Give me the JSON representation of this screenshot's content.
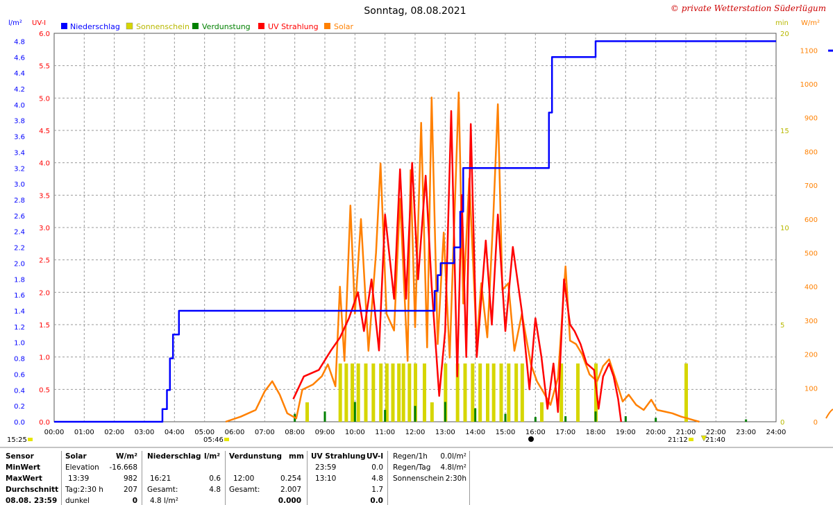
{
  "title": "Sonntag, 08.08.2021",
  "copyright": "© private Wetterstation Süderlügum",
  "axis_labels": {
    "left_outer": "l/m²",
    "left_inner": "UV-I",
    "right_inner": "min",
    "right_outer": "W/m²"
  },
  "colors": {
    "niederschlag": "#0000ff",
    "sonnenschein": "#d6d600",
    "verdunstung": "#008000",
    "uv": "#ff0000",
    "solar": "#ff8000"
  },
  "chart_data": {
    "type": "line",
    "title": "Sonntag, 08.08.2021",
    "x_ticks": [
      "00:00",
      "01:00",
      "02:00",
      "03:00",
      "04:00",
      "05:00",
      "06:00",
      "07:00",
      "08:00",
      "09:00",
      "10:00",
      "11:00",
      "12:00",
      "13:00",
      "14:00",
      "15:00",
      "16:00",
      "17:00",
      "18:00",
      "19:00",
      "20:00",
      "21:00",
      "22:00",
      "23:00",
      "24:00"
    ],
    "x_range_hours": [
      0,
      24
    ],
    "axes": {
      "rain_lm2": {
        "range": [
          0,
          4.9
        ],
        "ticks": [
          "0.0",
          "0.2",
          "0.4",
          "0.6",
          "0.8",
          "1.0",
          "1.2",
          "1.4",
          "1.6",
          "1.8",
          "2.0",
          "2.2",
          "2.4",
          "2.6",
          "2.8",
          "3.0",
          "3.2",
          "3.4",
          "3.6",
          "3.8",
          "4.0",
          "4.2",
          "4.4",
          "4.6",
          "4.8"
        ]
      },
      "uv_index": {
        "range": [
          0,
          6.0
        ],
        "ticks": [
          "0.0",
          "0.5",
          "1.0",
          "1.5",
          "2.0",
          "2.5",
          "3.0",
          "3.5",
          "4.0",
          "4.5",
          "5.0",
          "5.5",
          "6.0"
        ]
      },
      "sunshine_min": {
        "range": [
          0,
          20
        ],
        "ticks": [
          "0",
          "5",
          "10",
          "15",
          "20"
        ]
      },
      "solar_wm2": {
        "range": [
          0,
          1150
        ],
        "ticks": [
          "0",
          "100",
          "200",
          "300",
          "400",
          "500",
          "600",
          "700",
          "800",
          "900",
          "1000",
          "1100"
        ]
      }
    },
    "legend": [
      "Niederschlag",
      "Sonnenschein",
      "Verdunstung",
      "UV Strahlung",
      "Solar"
    ],
    "legend_position": "top",
    "grid": true,
    "series": [
      {
        "name": "Niederschlag",
        "axis": "rain_lm2",
        "step": true,
        "points": [
          [
            0,
            0
          ],
          [
            3.6,
            0
          ],
          [
            3.6,
            0.16
          ],
          [
            3.75,
            0.16
          ],
          [
            3.75,
            0.4
          ],
          [
            3.85,
            0.4
          ],
          [
            3.85,
            0.8
          ],
          [
            3.95,
            0.8
          ],
          [
            3.95,
            1.1
          ],
          [
            4.15,
            1.1
          ],
          [
            4.15,
            1.4
          ],
          [
            12.65,
            1.4
          ],
          [
            12.65,
            1.65
          ],
          [
            12.75,
            1.65
          ],
          [
            12.75,
            1.85
          ],
          [
            12.85,
            1.85
          ],
          [
            12.85,
            2.0
          ],
          [
            13.3,
            2.0
          ],
          [
            13.3,
            2.2
          ],
          [
            13.5,
            2.2
          ],
          [
            13.5,
            2.65
          ],
          [
            13.6,
            2.65
          ],
          [
            13.6,
            3.2
          ],
          [
            16.45,
            3.2
          ],
          [
            16.45,
            3.9
          ],
          [
            16.55,
            3.9
          ],
          [
            16.55,
            4.6
          ],
          [
            18.0,
            4.6
          ],
          [
            18.0,
            4.8
          ],
          [
            24,
            4.8
          ]
        ]
      },
      {
        "name": "UV Strahlung",
        "axis": "uv_index",
        "points": [
          [
            7.95,
            0.35
          ],
          [
            8.3,
            0.7
          ],
          [
            8.8,
            0.8
          ],
          [
            9.2,
            1.1
          ],
          [
            9.5,
            1.3
          ],
          [
            9.8,
            1.6
          ],
          [
            10.1,
            2.0
          ],
          [
            10.3,
            1.4
          ],
          [
            10.55,
            2.2
          ],
          [
            10.8,
            1.1
          ],
          [
            11.0,
            3.2
          ],
          [
            11.3,
            1.9
          ],
          [
            11.5,
            3.9
          ],
          [
            11.7,
            1.9
          ],
          [
            11.9,
            4.0
          ],
          [
            12.1,
            2.2
          ],
          [
            12.35,
            3.8
          ],
          [
            12.55,
            2.1
          ],
          [
            12.8,
            0.4
          ],
          [
            13.0,
            1.4
          ],
          [
            13.2,
            4.8
          ],
          [
            13.4,
            0.7
          ],
          [
            13.55,
            3.5
          ],
          [
            13.7,
            1.0
          ],
          [
            13.85,
            4.6
          ],
          [
            14.05,
            1.0
          ],
          [
            14.35,
            2.8
          ],
          [
            14.55,
            1.5
          ],
          [
            14.75,
            3.2
          ],
          [
            15.0,
            1.4
          ],
          [
            15.25,
            2.7
          ],
          [
            15.55,
            1.7
          ],
          [
            15.8,
            0.5
          ],
          [
            16.0,
            1.6
          ],
          [
            16.2,
            1.0
          ],
          [
            16.4,
            0.2
          ],
          [
            16.6,
            0.9
          ],
          [
            16.75,
            0.15
          ],
          [
            16.95,
            2.2
          ],
          [
            17.15,
            1.5
          ],
          [
            17.3,
            1.4
          ],
          [
            17.5,
            1.2
          ],
          [
            17.7,
            0.9
          ],
          [
            17.95,
            0.8
          ],
          [
            18.1,
            0.2
          ],
          [
            18.25,
            0.7
          ],
          [
            18.45,
            0.9
          ],
          [
            18.6,
            0.7
          ],
          [
            18.75,
            0.35
          ],
          [
            18.85,
            0.0
          ]
        ]
      },
      {
        "name": "Solar",
        "axis": "solar_wm2",
        "points": [
          [
            5.7,
            0
          ],
          [
            6.2,
            15
          ],
          [
            6.7,
            35
          ],
          [
            7.0,
            90
          ],
          [
            7.25,
            120
          ],
          [
            7.5,
            80
          ],
          [
            7.75,
            25
          ],
          [
            8.05,
            10
          ],
          [
            8.25,
            95
          ],
          [
            8.6,
            110
          ],
          [
            8.9,
            135
          ],
          [
            9.1,
            170
          ],
          [
            9.35,
            105
          ],
          [
            9.5,
            400
          ],
          [
            9.65,
            180
          ],
          [
            9.85,
            640
          ],
          [
            10.0,
            320
          ],
          [
            10.2,
            600
          ],
          [
            10.45,
            210
          ],
          [
            10.7,
            500
          ],
          [
            10.85,
            765
          ],
          [
            11.05,
            320
          ],
          [
            11.3,
            270
          ],
          [
            11.5,
            660
          ],
          [
            11.75,
            180
          ],
          [
            11.85,
            745
          ],
          [
            12.0,
            280
          ],
          [
            12.2,
            885
          ],
          [
            12.4,
            220
          ],
          [
            12.55,
            960
          ],
          [
            12.75,
            230
          ],
          [
            12.95,
            560
          ],
          [
            13.15,
            190
          ],
          [
            13.45,
            975
          ],
          [
            13.6,
            350
          ],
          [
            13.8,
            720
          ],
          [
            14.05,
            230
          ],
          [
            14.2,
            410
          ],
          [
            14.4,
            250
          ],
          [
            14.6,
            610
          ],
          [
            14.75,
            940
          ],
          [
            14.9,
            390
          ],
          [
            15.1,
            410
          ],
          [
            15.3,
            210
          ],
          [
            15.55,
            320
          ],
          [
            15.85,
            170
          ],
          [
            16.05,
            120
          ],
          [
            16.25,
            90
          ],
          [
            16.5,
            50
          ],
          [
            16.75,
            130
          ],
          [
            17.0,
            460
          ],
          [
            17.15,
            240
          ],
          [
            17.35,
            230
          ],
          [
            17.55,
            200
          ],
          [
            17.8,
            140
          ],
          [
            18.05,
            120
          ],
          [
            18.25,
            165
          ],
          [
            18.45,
            185
          ],
          [
            18.65,
            130
          ],
          [
            18.9,
            60
          ],
          [
            19.1,
            80
          ],
          [
            19.35,
            50
          ],
          [
            19.6,
            35
          ],
          [
            19.85,
            65
          ],
          [
            20.05,
            35
          ],
          [
            20.3,
            30
          ],
          [
            20.55,
            25
          ],
          [
            20.85,
            15
          ],
          [
            21.05,
            10
          ],
          [
            21.25,
            5
          ],
          [
            21.45,
            0
          ]
        ]
      }
    ],
    "sunshine_bars": [
      [
        8.4,
        1
      ],
      [
        9.5,
        3
      ],
      [
        9.7,
        3
      ],
      [
        9.9,
        3
      ],
      [
        10.1,
        3
      ],
      [
        10.35,
        3
      ],
      [
        10.6,
        3
      ],
      [
        10.85,
        3
      ],
      [
        11.05,
        3
      ],
      [
        11.25,
        3
      ],
      [
        11.45,
        3
      ],
      [
        11.6,
        3
      ],
      [
        11.8,
        3
      ],
      [
        12.0,
        3
      ],
      [
        12.3,
        3
      ],
      [
        12.55,
        1
      ],
      [
        13.0,
        3
      ],
      [
        13.4,
        3
      ],
      [
        13.65,
        3
      ],
      [
        13.9,
        3
      ],
      [
        14.15,
        3
      ],
      [
        14.4,
        3
      ],
      [
        14.6,
        3
      ],
      [
        14.85,
        3
      ],
      [
        15.1,
        3
      ],
      [
        15.35,
        3
      ],
      [
        15.55,
        3
      ],
      [
        16.2,
        1
      ],
      [
        16.85,
        3
      ],
      [
        17.4,
        3
      ],
      [
        18.0,
        3
      ],
      [
        21.0,
        3
      ]
    ],
    "evaporation_bars": [
      [
        8.0,
        0.1
      ],
      [
        9.0,
        0.13
      ],
      [
        10.0,
        0.25
      ],
      [
        11.0,
        0.15
      ],
      [
        12.0,
        0.2
      ],
      [
        13.0,
        0.25
      ],
      [
        14.0,
        0.17
      ],
      [
        15.0,
        0.1
      ],
      [
        16.0,
        0.06
      ],
      [
        17.0,
        0.07
      ],
      [
        18.0,
        0.13
      ],
      [
        19.0,
        0.07
      ],
      [
        20.0,
        0.05
      ],
      [
        23.0,
        0.03
      ]
    ]
  },
  "markers": {
    "now_left": "15:25",
    "sunrise": "05:46",
    "sunset_1": "21:12",
    "sunset_2": "21:40"
  },
  "stats": {
    "row_labels": [
      "Sensor",
      "MinWert",
      "MaxWert",
      "Durchschnitt",
      "08.08. 23:59"
    ],
    "solar": {
      "header": "Solar",
      "unit": "W/m²",
      "rows": [
        [
          "Elevation",
          "-16.668"
        ],
        [
          "13:39",
          "982"
        ],
        [
          "Tag:2:30 h",
          "207"
        ],
        [
          "dunkel",
          "0"
        ]
      ]
    },
    "niederschlag": {
      "header": "Niederschlag",
      "unit": "l/m²",
      "rows": [
        [
          "",
          ""
        ],
        [
          "16:21",
          "0.6"
        ],
        [
          "Gesamt:",
          "4.8"
        ],
        [
          "4.8 l/m²",
          ""
        ]
      ]
    },
    "verdunstung": {
      "header": "Verdunstung",
      "unit": "mm",
      "rows": [
        [
          "",
          ""
        ],
        [
          "12:00",
          "0.254"
        ],
        [
          "Gesamt:",
          "2.007"
        ],
        [
          "",
          "0.000"
        ]
      ]
    },
    "uv": {
      "header": "UV Strahlung",
      "unit": "UV-I",
      "rows": [
        [
          "23:59",
          "0.0"
        ],
        [
          "13:10",
          "4.8"
        ],
        [
          "",
          "1.7"
        ],
        [
          "",
          "0.0"
        ]
      ]
    },
    "regen": {
      "rows": [
        [
          "Regen/1h",
          "0.0l/m²"
        ],
        [
          "Regen/Tag",
          "4.8l/m²"
        ],
        [
          "Sonnenschein",
          "2:30h"
        ]
      ]
    }
  }
}
